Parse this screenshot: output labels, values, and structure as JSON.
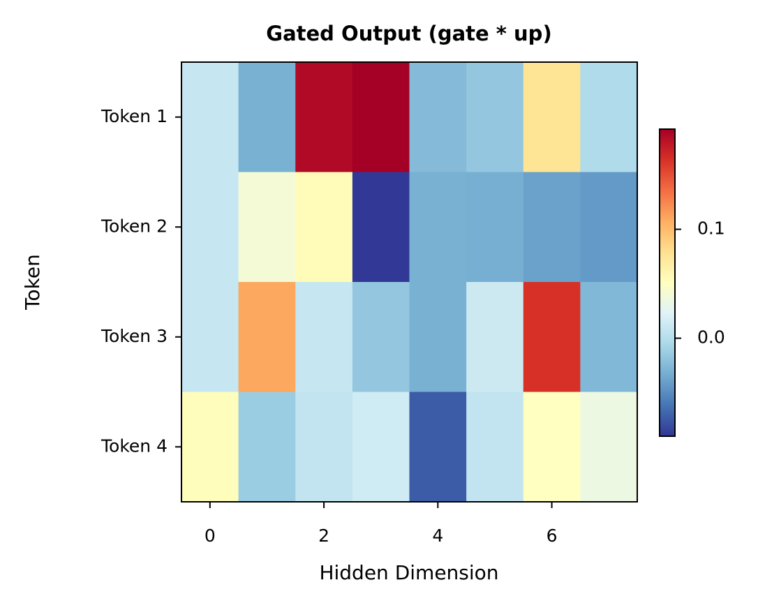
{
  "chart_data": {
    "type": "heatmap",
    "title": "Gated Output (gate * up)",
    "xlabel": "Hidden Dimension",
    "ylabel": "Token",
    "x": [
      0,
      1,
      2,
      3,
      4,
      5,
      6,
      7
    ],
    "categories": [
      "Token 1",
      "Token 2",
      "Token 3",
      "Token 4"
    ],
    "values": [
      [
        0.009,
        -0.031,
        0.186,
        0.192,
        -0.025,
        -0.017,
        0.076,
        -0.003
      ],
      [
        0.009,
        0.04,
        0.054,
        -0.089,
        -0.031,
        -0.032,
        -0.039,
        -0.043
      ],
      [
        0.009,
        0.11,
        0.009,
        -0.017,
        -0.031,
        0.012,
        0.164,
        -0.027
      ],
      [
        0.053,
        -0.014,
        0.007,
        0.014,
        -0.073,
        0.007,
        0.05,
        0.034
      ]
    ],
    "xlim": [
      -0.5,
      7.5
    ],
    "xticks": [
      0,
      2,
      4,
      6
    ],
    "colormap": "RdYlBu_r",
    "clim": [
      -0.09,
      0.192
    ],
    "cticks": [
      {
        "value": 0,
        "label": "0.0"
      },
      0.1
    ]
  }
}
